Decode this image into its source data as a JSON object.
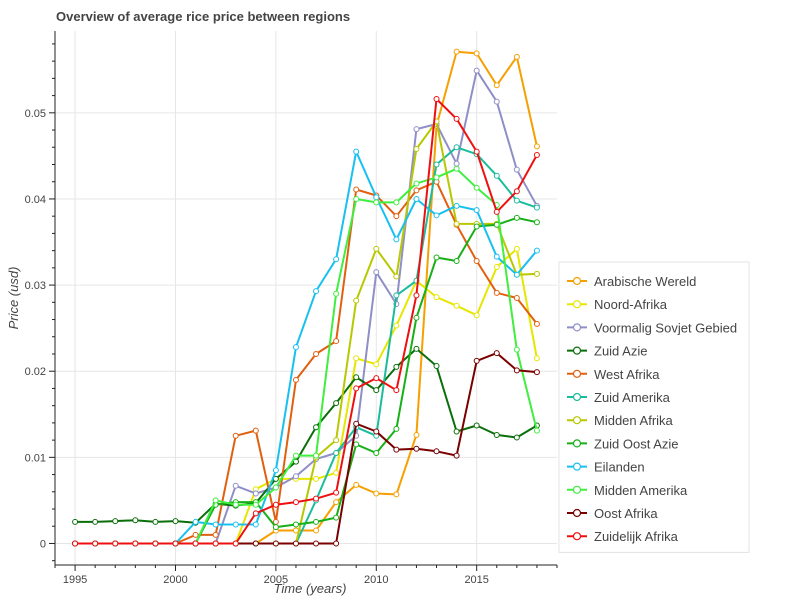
{
  "chart_data": {
    "type": "line",
    "title": "Overview of average rice price between regions",
    "xlabel": "Time (years)",
    "ylabel": "Price (usd)",
    "xlim": [
      1994,
      2019
    ],
    "ylim": [
      -0.0025,
      0.0595
    ],
    "xticks": [
      1995,
      2000,
      2005,
      2010,
      2015
    ],
    "yticks": [
      0,
      0.01,
      0.02,
      0.03,
      0.04,
      0.05
    ],
    "ytick_labels": [
      "0",
      "0.01",
      "0.02",
      "0.03",
      "0.04",
      "0.05"
    ],
    "grid": true,
    "legend_position": "right",
    "x": [
      1995,
      1996,
      1997,
      1998,
      1999,
      2000,
      2001,
      2002,
      2003,
      2004,
      2005,
      2006,
      2007,
      2008,
      2009,
      2010,
      2011,
      2012,
      2013,
      2014,
      2015,
      2016,
      2017,
      2018
    ],
    "series": [
      {
        "name": "Arabische Wereld",
        "color": "#f5a000",
        "values": [
          0,
          0,
          0,
          0,
          0,
          0,
          0,
          0,
          0,
          0,
          0.0015,
          0.0015,
          0.0015,
          0.0048,
          0.0068,
          0.0058,
          0.0057,
          0.0126,
          0.0485,
          0.0571,
          0.0569,
          0.0532,
          0.0565,
          0.0461
        ]
      },
      {
        "name": "Noord-Afrika",
        "color": "#e6e600",
        "values": [
          0,
          0,
          0,
          0,
          0,
          0,
          0,
          0,
          0,
          0.0063,
          0.0075,
          0.0075,
          0.0075,
          0.0082,
          0.0215,
          0.0208,
          0.0253,
          0.0305,
          0.0286,
          0.0276,
          0.0265,
          0.0321,
          0.0342,
          0.0215
        ]
      },
      {
        "name": "Voormalig Sovjet Gebied",
        "color": "#8f8fc8",
        "values": [
          0,
          0,
          0,
          0,
          0,
          0,
          0,
          0,
          0.0067,
          0.0058,
          0.0065,
          0.0078,
          0.0098,
          0.0105,
          0.0125,
          0.0315,
          0.0278,
          0.0481,
          0.0487,
          0.0441,
          0.0549,
          0.0513,
          0.0434,
          0.0392
        ]
      },
      {
        "name": "Zuid Azie",
        "color": "#0a6e0a",
        "values": [
          0.0025,
          0.0025,
          0.0026,
          0.0027,
          0.0025,
          0.0026,
          0.0024,
          0.0046,
          0.0044,
          0.0047,
          0.0075,
          0.0095,
          0.0135,
          0.0163,
          0.0193,
          0.0178,
          0.0205,
          0.0226,
          0.0206,
          0.013,
          0.0137,
          0.0126,
          0.0123,
          0.0137
        ]
      },
      {
        "name": "West Afrika",
        "color": "#e06010",
        "values": [
          0,
          0,
          0,
          0,
          0,
          0,
          0.001,
          0.001,
          0.0125,
          0.0131,
          0.0025,
          0.019,
          0.022,
          0.0235,
          0.0411,
          0.0404,
          0.038,
          0.041,
          0.042,
          0.037,
          0.0328,
          0.0291,
          0.0285,
          0.0255
        ]
      },
      {
        "name": "Zuid Amerika",
        "color": "#1abc9c",
        "values": [
          0,
          0,
          0,
          0,
          0,
          0,
          0,
          0,
          0,
          0,
          0,
          0,
          0.005,
          0.0105,
          0.0135,
          0.0125,
          0.0288,
          0.0305,
          0.044,
          0.046,
          0.0452,
          0.0427,
          0.0398,
          0.039
        ]
      },
      {
        "name": "Midden Afrika",
        "color": "#b8c800",
        "values": [
          0,
          0,
          0,
          0,
          0,
          0,
          0,
          0,
          0,
          0,
          0,
          0,
          0.01,
          0.012,
          0.0282,
          0.0342,
          0.031,
          0.0458,
          0.049,
          0.0371,
          0.0371,
          0.0371,
          0.0312,
          0.0313
        ]
      },
      {
        "name": "Zuid Oost Azie",
        "color": "#18b018",
        "values": [
          0,
          0,
          0,
          0,
          0,
          0,
          0,
          0.0045,
          0.0048,
          0.0048,
          0.0019,
          0.0022,
          0.0025,
          0.003,
          0.0115,
          0.0105,
          0.0133,
          0.0262,
          0.0332,
          0.0328,
          0.0368,
          0.037,
          0.0378,
          0.0373
        ]
      },
      {
        "name": "Eilanden",
        "color": "#18c0f0",
        "values": [
          0,
          0,
          0,
          0,
          0,
          0,
          0.0025,
          0.0022,
          0.0022,
          0.0022,
          0.0085,
          0.0228,
          0.0293,
          0.033,
          0.0455,
          0.0402,
          0.0353,
          0.04,
          0.0381,
          0.0392,
          0.0387,
          0.0333,
          0.0312,
          0.034
        ]
      },
      {
        "name": "Midden Amerika",
        "color": "#40ee40",
        "values": [
          0,
          0,
          0,
          0,
          0,
          0,
          0,
          0.005,
          0.0045,
          0.0045,
          0.0065,
          0.0102,
          0.0102,
          0.029,
          0.04,
          0.0396,
          0.0396,
          0.0418,
          0.0425,
          0.0435,
          0.0413,
          0.0393,
          0.0225,
          0.0131
        ]
      },
      {
        "name": "Oost Afrika",
        "color": "#7a0000",
        "values": [
          0,
          0,
          0,
          0,
          0,
          0,
          0,
          0,
          0,
          0,
          0,
          0,
          0,
          0,
          0.0139,
          0.013,
          0.0109,
          0.011,
          0.0107,
          0.0102,
          0.0212,
          0.0221,
          0.0201,
          0.0199
        ]
      },
      {
        "name": "Zuidelijk Afrika",
        "color": "#ee1010",
        "values": [
          0,
          0,
          0,
          0,
          0,
          0,
          0,
          0,
          0,
          0.0035,
          0.0045,
          0.0048,
          0.0052,
          0.0059,
          0.018,
          0.0192,
          0.0178,
          0.0288,
          0.0516,
          0.0493,
          0.0455,
          0.0385,
          0.0409,
          0.0451
        ]
      }
    ]
  }
}
